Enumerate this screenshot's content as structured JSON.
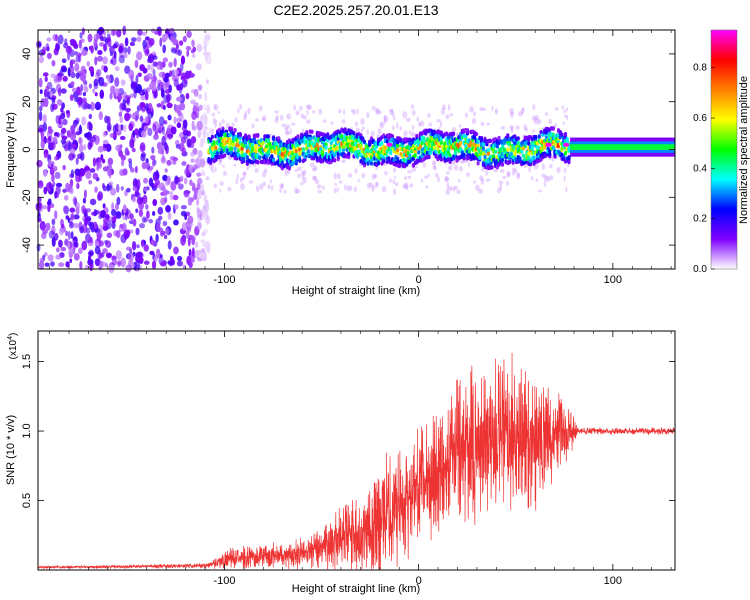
{
  "title": "C2E2.2025.257.20.01.E13",
  "chart_data": [
    {
      "type": "heatmap",
      "name": "spectrogram",
      "xlabel": "Height of straight line (km)",
      "ylabel": "Frequency (Hz)",
      "xlim": [
        -196,
        132
      ],
      "ylim": [
        -50,
        50
      ],
      "xticks": [
        -100,
        0,
        100
      ],
      "xtick_labels": [
        "-100",
        "0",
        "100"
      ],
      "yticks": [
        -40,
        -20,
        0,
        20,
        40
      ],
      "ytick_labels": [
        "-40",
        "-20",
        "0",
        "20",
        "40"
      ],
      "regions": [
        {
          "from": -196,
          "to": -108,
          "description": "broadband noise",
          "amplitude": 0.25
        },
        {
          "from": -108,
          "to": 78,
          "description": "signal band around 0 Hz",
          "center_hz": 2,
          "halfwidth_hz": 6,
          "amplitude": 0.45
        },
        {
          "from": 78,
          "to": 132,
          "description": "steady carrier",
          "center_hz": 2,
          "halfwidth_hz": 4,
          "amplitude": 0.35
        }
      ],
      "peaks": [
        {
          "x": -15,
          "y": 2,
          "value": 0.95
        },
        {
          "x": 67,
          "y": 2,
          "value": 0.95
        },
        {
          "x": 76,
          "y": 2,
          "value": 0.95
        }
      ],
      "colorbar": {
        "label": "Normalized spectral amplitude",
        "range": [
          0,
          0.95
        ],
        "ticks": [
          0.0,
          0.2,
          0.4,
          0.6,
          0.8
        ],
        "tick_labels": [
          "0.0",
          "0.2",
          "0.4",
          "0.6",
          "0.8"
        ],
        "colors": [
          "#ffffff",
          "#8000ff",
          "#0000ff",
          "#00ffff",
          "#00ff00",
          "#ffff00",
          "#ff8000",
          "#ff0000",
          "#ff00ff"
        ]
      }
    },
    {
      "type": "line",
      "name": "snr",
      "xlabel": "Height of straight line (km)",
      "ylabel": "SNR (10 * v/v)",
      "scale_label": "(x10",
      "scale_exponent": "4",
      "xlim": [
        -196,
        132
      ],
      "ylim": [
        0,
        1.72
      ],
      "xticks": [
        -100,
        0,
        100
      ],
      "xtick_labels": [
        "-100",
        "0",
        "100"
      ],
      "yticks": [
        0.5,
        1.0,
        1.5
      ],
      "ytick_labels": [
        "0.5",
        "1.0",
        "1.5"
      ],
      "color": "#ee3333",
      "envelope": [
        {
          "x": -196,
          "base": 0.02,
          "amp": 0.01
        },
        {
          "x": -110,
          "base": 0.03,
          "amp": 0.02
        },
        {
          "x": -98,
          "base": 0.08,
          "amp": 0.08
        },
        {
          "x": -60,
          "base": 0.12,
          "amp": 0.12
        },
        {
          "x": -36,
          "base": 0.25,
          "amp": 0.3
        },
        {
          "x": -20,
          "base": 0.35,
          "amp": 0.5
        },
        {
          "x": 0,
          "base": 0.6,
          "amp": 0.45
        },
        {
          "x": 20,
          "base": 0.85,
          "amp": 0.6
        },
        {
          "x": 40,
          "base": 0.95,
          "amp": 0.7
        },
        {
          "x": 60,
          "base": 0.95,
          "amp": 0.55
        },
        {
          "x": 78,
          "base": 1.0,
          "amp": 0.2
        },
        {
          "x": 82,
          "base": 1.0,
          "amp": 0.03
        },
        {
          "x": 132,
          "base": 1.0,
          "amp": 0.03
        }
      ]
    }
  ]
}
